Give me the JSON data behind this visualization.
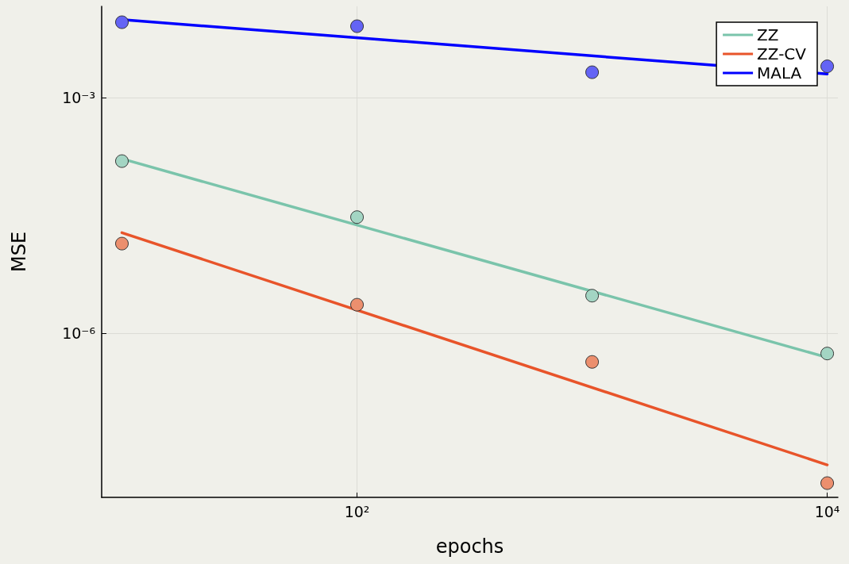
{
  "chart_data": {
    "type": "line",
    "xlabel": "epochs",
    "ylabel": "MSE",
    "log": "xy",
    "grid": true,
    "legend": "top right",
    "xlim": [
      8.2,
      11100
    ],
    "ylim": [
      8.1e-09,
      0.0145
    ],
    "xticks": [
      {
        "value": 100,
        "label": "10²"
      },
      {
        "value": 10000,
        "label": "10⁴"
      }
    ],
    "yticks": [
      {
        "value": 1e-06,
        "label": "10⁻⁶"
      },
      {
        "value": 0.001,
        "label": "10⁻³"
      }
    ],
    "series": [
      {
        "type": "scatter",
        "marker": "circle",
        "color": "#a3d5c3",
        "x": [
          10,
          100,
          1000,
          10000
        ],
        "values": [
          0.000155,
          3e-05,
          3e-06,
          5.5e-07
        ]
      },
      {
        "type": "scatter",
        "marker": "circle",
        "color": "#ec8f6e",
        "x": [
          10,
          100,
          1000,
          10000
        ],
        "values": [
          1.38e-05,
          2.3e-06,
          4.3e-07,
          1.23e-08
        ]
      },
      {
        "type": "scatter",
        "marker": "circle",
        "color": "#6464f5",
        "x": [
          10,
          100,
          1000,
          10000
        ],
        "values": [
          0.0091,
          0.0081,
          0.0021,
          0.0025
        ]
      },
      {
        "marker": "none",
        "name": "ZZ",
        "color": "#7ac4ab",
        "x": [
          10,
          10000
        ],
        "values": [
          0.000166,
          4.9e-07
        ]
      },
      {
        "marker": "none",
        "name": "ZZ-CV",
        "color": "#e8542a",
        "x": [
          10,
          10000
        ],
        "values": [
          1.9e-05,
          2.1e-08
        ]
      },
      {
        "marker": "none",
        "name": "MALA",
        "color": "#0000ff",
        "x": [
          10,
          10000
        ],
        "values": [
          0.0098,
          0.002
        ]
      }
    ]
  }
}
